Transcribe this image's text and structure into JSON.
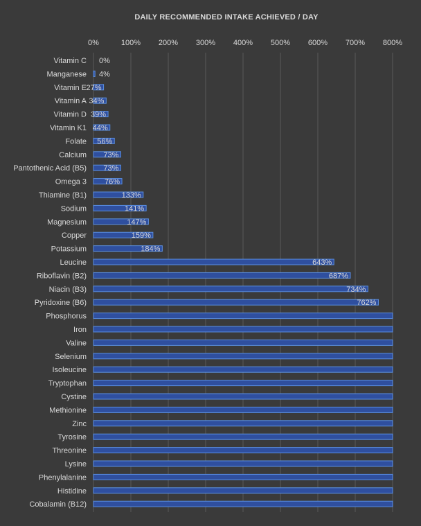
{
  "chart_data": {
    "type": "bar",
    "orientation": "horizontal",
    "title": "DAILY RECOMMENDED INTAKE ACHIEVED / DAY",
    "xlabel": "",
    "ylabel": "",
    "xlim": [
      0,
      800
    ],
    "x_ticks": [
      "0%",
      "100%",
      "200%",
      "300%",
      "400%",
      "500%",
      "600%",
      "700%",
      "800%"
    ],
    "x_tick_values": [
      0,
      100,
      200,
      300,
      400,
      500,
      600,
      700,
      800
    ],
    "grid": true,
    "legend": "none",
    "bar_fill_color": "#2f4f9f",
    "bar_edge_color": "#5b8fe0",
    "background_color": "#3a3a3a",
    "categories": [
      "Vitamin C",
      "Manganese",
      "Vitamin E",
      "Vitamin A",
      "Vitamin D",
      "Vitamin K1",
      "Folate",
      "Calcium",
      "Pantothenic Acid (B5)",
      "Omega 3",
      "Thiamine (B1)",
      "Sodium",
      "Magnesium",
      "Copper",
      "Potassium",
      "Leucine",
      "Riboflavin (B2)",
      "Niacin (B3)",
      "Pyridoxine (B6)",
      "Phosphorus",
      "Iron",
      "Valine",
      "Selenium",
      "Isoleucine",
      "Tryptophan",
      "Cystine",
      "Methionine",
      "Zinc",
      "Tyrosine",
      "Threonine",
      "Lysine",
      "Phenylalanine",
      "Histidine",
      "Cobalamin (B12)"
    ],
    "values": [
      0,
      4,
      27,
      34,
      39,
      44,
      56,
      73,
      73,
      76,
      133,
      141,
      147,
      159,
      184,
      643,
      687,
      734,
      762,
      800,
      800,
      800,
      800,
      800,
      800,
      800,
      800,
      800,
      800,
      800,
      800,
      800,
      800,
      800
    ],
    "data_labels": [
      "0%",
      "4%",
      "27%",
      "34%",
      "39%",
      "44%",
      "56%",
      "73%",
      "73%",
      "76%",
      "133%",
      "141%",
      "147%",
      "159%",
      "184%",
      "643%",
      "687%",
      "734%",
      "762%",
      "",
      "",
      "",
      "",
      "",
      "",
      "",
      "",
      "",
      "",
      "",
      "",
      "",
      "",
      ""
    ]
  }
}
